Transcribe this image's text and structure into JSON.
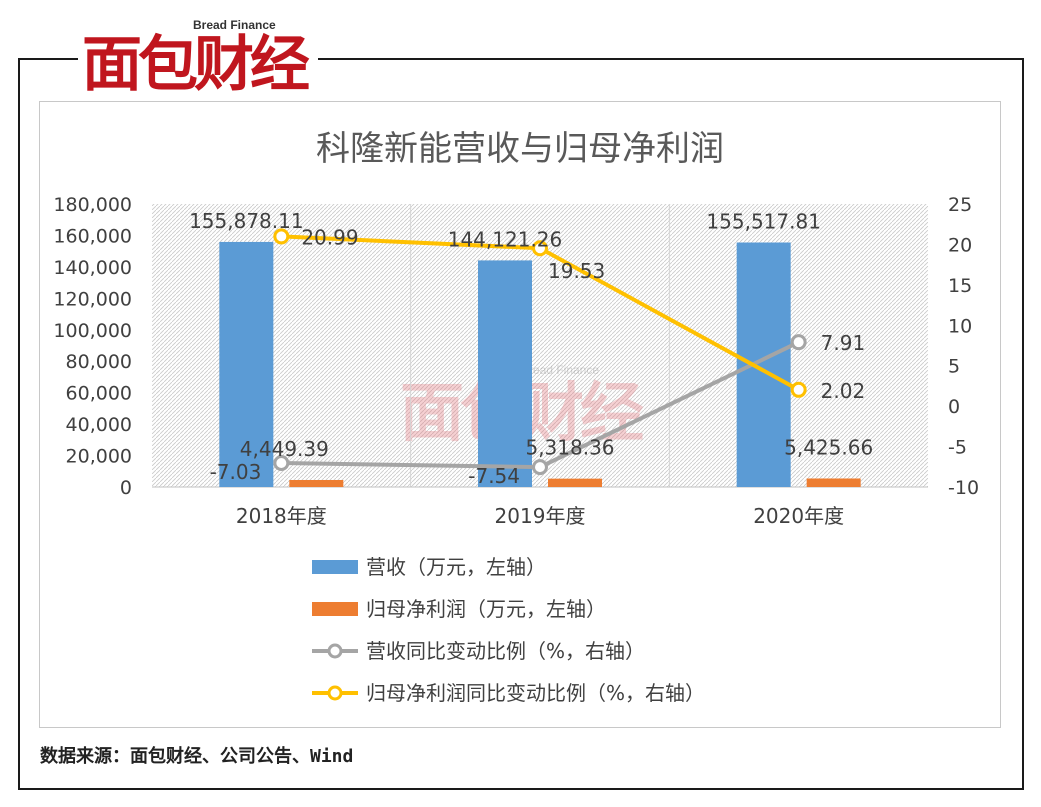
{
  "brand": {
    "name_cn": "面包财经",
    "name_en": "Bread Finance"
  },
  "source_text": "数据来源：面包财经、公司公告、Wind",
  "chart_data": {
    "type": "bar",
    "title": "科隆新能营收与归母净利润",
    "categories": [
      "2018年度",
      "2019年度",
      "2020年度"
    ],
    "y_left": {
      "range": [
        0,
        180000
      ],
      "ticks": [
        "0",
        "20,000",
        "40,000",
        "60,000",
        "80,000",
        "100,000",
        "120,000",
        "140,000",
        "160,000",
        "180,000"
      ]
    },
    "y_right": {
      "range": [
        -10,
        25
      ],
      "ticks": [
        "-10",
        "-5",
        "0",
        "5",
        "10",
        "15",
        "20",
        "25"
      ]
    },
    "series": [
      {
        "name": "营收（万元，左轴）",
        "type": "bar",
        "axis": "left",
        "color": "#5b9bd5",
        "values": [
          155878.11,
          144121.26,
          155517.81
        ],
        "labels": [
          "155,878.11",
          "144,121.26",
          "155,517.81"
        ]
      },
      {
        "name": "归母净利润（万元，左轴）",
        "type": "bar",
        "axis": "left",
        "color": "#ed7d31",
        "values": [
          4449.39,
          5318.36,
          5425.66
        ],
        "labels": [
          "4,449.39",
          "5,318.36",
          "5,425.66"
        ]
      },
      {
        "name": "营收同比变动比例（%，右轴）",
        "type": "line",
        "axis": "right",
        "color": "#a5a5a5",
        "values": [
          -7.03,
          -7.54,
          7.91
        ],
        "labels": [
          "-7.03",
          "-7.54",
          "7.91"
        ]
      },
      {
        "name": "归母净利润同比变动比例（%，右轴）",
        "type": "line",
        "axis": "right",
        "color": "#ffc000",
        "values": [
          20.99,
          19.53,
          2.02
        ],
        "labels": [
          "20.99",
          "19.53",
          "2.02"
        ]
      }
    ],
    "grid": false,
    "legend_position": "bottom"
  }
}
